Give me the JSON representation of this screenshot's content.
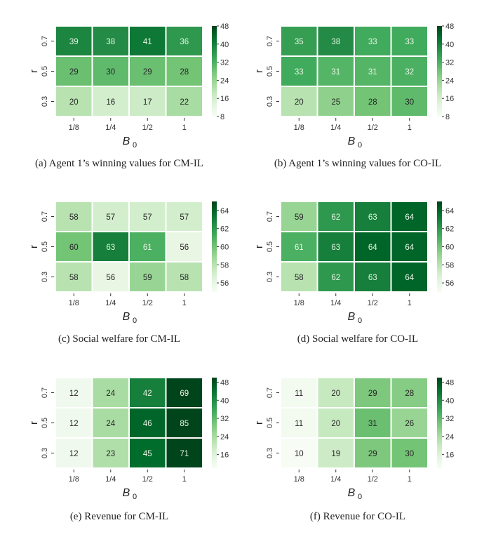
{
  "chart_data": [
    {
      "type": "heatmap",
      "id": "a",
      "caption": "(a)  Agent 1’s winning values for CM-IL",
      "xlabel": "B",
      "xlabel_sub": "0",
      "ylabel": "r",
      "x_ticks": [
        "1/8",
        "1/4",
        "1/2",
        "1"
      ],
      "y_ticks": [
        "0.7",
        "0.5",
        "0.3"
      ],
      "values": [
        [
          39,
          38,
          41,
          36
        ],
        [
          29,
          30,
          29,
          28
        ],
        [
          20,
          16,
          17,
          22
        ]
      ],
      "colorbar": {
        "min": 8,
        "max": 48,
        "ticks": [
          48,
          40,
          32,
          24,
          16,
          8
        ]
      },
      "colormap": "Greens"
    },
    {
      "type": "heatmap",
      "id": "b",
      "caption": "(b)  Agent 1’s winning values for CO-IL",
      "xlabel": "B",
      "xlabel_sub": "0",
      "ylabel": "r",
      "x_ticks": [
        "1/8",
        "1/4",
        "1/2",
        "1"
      ],
      "y_ticks": [
        "0.7",
        "0.5",
        "0.3"
      ],
      "values": [
        [
          35,
          38,
          33,
          33
        ],
        [
          33,
          31,
          31,
          32
        ],
        [
          20,
          25,
          28,
          30
        ]
      ],
      "colorbar": {
        "min": 8,
        "max": 48,
        "ticks": [
          48,
          40,
          32,
          24,
          16,
          8
        ]
      },
      "colormap": "Greens"
    },
    {
      "type": "heatmap",
      "id": "c",
      "caption": "(c)  Social welfare for CM-IL",
      "xlabel": "B",
      "xlabel_sub": "0",
      "ylabel": "r",
      "x_ticks": [
        "1/8",
        "1/4",
        "1/2",
        "1"
      ],
      "y_ticks": [
        "0.7",
        "0.5",
        "0.3"
      ],
      "values": [
        [
          58,
          57,
          57,
          57
        ],
        [
          60,
          63,
          61,
          56
        ],
        [
          58,
          56,
          59,
          58
        ]
      ],
      "colorbar": {
        "min": 55,
        "max": 65,
        "ticks": [
          64,
          62,
          60,
          58,
          56
        ]
      },
      "colormap": "Greens"
    },
    {
      "type": "heatmap",
      "id": "d",
      "caption": "(d)  Social welfare for CO-IL",
      "xlabel": "B",
      "xlabel_sub": "0",
      "ylabel": "r",
      "x_ticks": [
        "1/8",
        "1/4",
        "1/2",
        "1"
      ],
      "y_ticks": [
        "0.7",
        "0.5",
        "0.3"
      ],
      "values": [
        [
          59,
          62,
          63,
          64
        ],
        [
          61,
          63,
          64,
          64
        ],
        [
          58,
          62,
          63,
          64
        ]
      ],
      "colorbar": {
        "min": 55,
        "max": 65,
        "ticks": [
          64,
          62,
          60,
          58,
          56
        ]
      },
      "colormap": "Greens"
    },
    {
      "type": "heatmap",
      "id": "e",
      "caption": "(e)  Revenue for CM-IL",
      "xlabel": "B",
      "xlabel_sub": "0",
      "ylabel": "r",
      "x_ticks": [
        "1/8",
        "1/4",
        "1/2",
        "1"
      ],
      "y_ticks": [
        "0.7",
        "0.5",
        "0.3"
      ],
      "values": [
        [
          12,
          24,
          42,
          69
        ],
        [
          12,
          24,
          46,
          85
        ],
        [
          12,
          23,
          45,
          71
        ]
      ],
      "colorbar": {
        "min": 10,
        "max": 50,
        "ticks": [
          48,
          40,
          32,
          24,
          16
        ]
      },
      "colormap": "Greens"
    },
    {
      "type": "heatmap",
      "id": "f",
      "caption": "(f)  Revenue for CO-IL",
      "xlabel": "B",
      "xlabel_sub": "0",
      "ylabel": "r",
      "x_ticks": [
        "1/8",
        "1/4",
        "1/2",
        "1"
      ],
      "y_ticks": [
        "0.7",
        "0.5",
        "0.3"
      ],
      "values": [
        [
          11,
          20,
          29,
          28
        ],
        [
          11,
          20,
          31,
          26
        ],
        [
          10,
          19,
          29,
          30
        ]
      ],
      "colorbar": {
        "min": 10,
        "max": 50,
        "ticks": [
          48,
          40,
          32,
          24,
          16
        ]
      },
      "colormap": "Greens"
    }
  ]
}
